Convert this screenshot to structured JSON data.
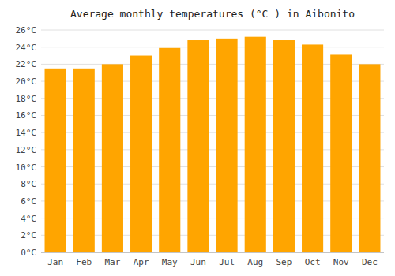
{
  "chart_data": {
    "type": "bar",
    "title": "Average monthly temperatures (°C ) in Aibonito",
    "categories": [
      "Jan",
      "Feb",
      "Mar",
      "Apr",
      "May",
      "Jun",
      "Jul",
      "Aug",
      "Sep",
      "Oct",
      "Nov",
      "Dec"
    ],
    "values": [
      21.5,
      21.5,
      22.0,
      23.0,
      23.9,
      24.8,
      25.0,
      25.2,
      24.8,
      24.3,
      23.1,
      22.0
    ],
    "color": "#FFA500",
    "ylim": [
      0,
      26
    ],
    "yticks": [
      {
        "value": 0,
        "label": "0°C"
      },
      {
        "value": 2,
        "label": "2°C"
      },
      {
        "value": 4,
        "label": "4°C"
      },
      {
        "value": 6,
        "label": "6°C"
      },
      {
        "value": 8,
        "label": "8°C"
      },
      {
        "value": 10,
        "label": "10°C"
      },
      {
        "value": 12,
        "label": "12°C"
      },
      {
        "value": 14,
        "label": "14°C"
      },
      {
        "value": 16,
        "label": "16°C"
      },
      {
        "value": 18,
        "label": "18°C"
      },
      {
        "value": 20,
        "label": "20°C"
      },
      {
        "value": 22,
        "label": "22°C"
      },
      {
        "value": 24,
        "label": "24°C"
      },
      {
        "value": 26,
        "label": "26°C"
      }
    ],
    "grid": true
  }
}
